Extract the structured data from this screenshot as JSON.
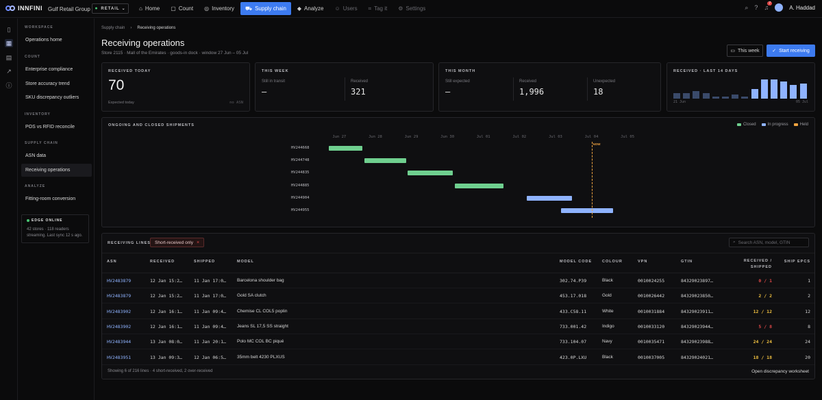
{
  "brand": {
    "name": "INNFINI",
    "org": "Gulf Retail Group",
    "mode": "RETAIL"
  },
  "nav": [
    {
      "label": "Home",
      "icon": "home-icon",
      "state": "normal"
    },
    {
      "label": "Count",
      "icon": "count-icon",
      "state": "normal"
    },
    {
      "label": "Inventory",
      "icon": "inventory-icon",
      "state": "normal"
    },
    {
      "label": "Supply chain",
      "icon": "supply-chain-icon",
      "state": "active"
    },
    {
      "label": "Analyze",
      "icon": "analyze-icon",
      "state": "normal"
    },
    {
      "label": "Users",
      "icon": "users-icon",
      "state": "disabled"
    },
    {
      "label": "Tag it",
      "icon": "tag-icon",
      "state": "disabled"
    },
    {
      "label": "Settings",
      "icon": "settings-icon",
      "state": "disabled"
    }
  ],
  "topright": {
    "notifications": "7",
    "user": "A. Haddad"
  },
  "sidebar": {
    "sections": [
      {
        "title": "WORKSPACE",
        "items": [
          "Operations home"
        ]
      },
      {
        "title": "COUNT",
        "items": [
          "Enterprise compliance",
          "Store accuracy trend",
          "SKU discrepancy outliers"
        ]
      },
      {
        "title": "INVENTORY",
        "items": [
          "POS vs RFID reconcile"
        ]
      },
      {
        "title": "SUPPLY CHAIN",
        "items": [
          "ASN data",
          "Receiving operations"
        ]
      },
      {
        "title": "ANALYZE",
        "items": [
          "Fitting-room conversion"
        ]
      }
    ],
    "edge": {
      "title": "EDGE ONLINE",
      "line1": "42 stores · 118 readers",
      "line2": "streaming. Last sync 12 s ago."
    }
  },
  "breadcrumb": {
    "parent": "Supply chain",
    "current": "Receiving operations"
  },
  "page": {
    "title": "Receiving operations",
    "subtitle": "Store 2115 · Mall of the Emirates · goods-in dock · window 27 Jun – 05 Jul"
  },
  "actions": {
    "period": "This week",
    "primary": "Start receiving"
  },
  "cards": {
    "today": {
      "title": "RECEIVED TODAY",
      "value": "70",
      "foot": "Expected today",
      "foot_right": "no ASN"
    },
    "week": {
      "title": "THIS WEEK",
      "transit_label": "Still in transit",
      "transit_value": "—",
      "received_label": "Received",
      "received_value": "321"
    },
    "month": {
      "title": "THIS MONTH",
      "expected_label": "Still expected",
      "expected_value": "—",
      "received_label": "Received",
      "received_value": "1,996",
      "unexpected_label": "Unexpected",
      "unexpected_value": "18"
    },
    "spark": {
      "title": "RECEIVED · LAST 14 DAYS",
      "start": "21 Jun",
      "end": "05 Jul",
      "values": [
        6,
        6,
        8,
        6,
        2,
        2,
        4,
        2,
        10,
        20,
        20,
        18,
        14,
        16
      ]
    }
  },
  "gantt": {
    "title": "ONGOING AND CLOSED SHIPMENTS",
    "legend": [
      {
        "label": "Closed",
        "color": "#6fcf8f"
      },
      {
        "label": "In progress",
        "color": "#8fb3ff"
      },
      {
        "label": "Held",
        "color": "#f0a340"
      }
    ],
    "ticks": [
      "Jun 27",
      "Jun 28",
      "Jun 29",
      "Jun 30",
      "Jul 01",
      "Jul 02",
      "Jul 03",
      "Jul 04",
      "Jul 05"
    ],
    "now_label": "NOW",
    "now_day": 7.5,
    "rows": [
      {
        "asn": "HV244668",
        "start": 0.2,
        "end": 1.15,
        "status": "closed"
      },
      {
        "asn": "HV244748",
        "start": 1.2,
        "end": 2.35,
        "status": "closed"
      },
      {
        "asn": "HV244835",
        "start": 2.4,
        "end": 3.65,
        "status": "closed"
      },
      {
        "asn": "HV244885",
        "start": 3.7,
        "end": 5.05,
        "status": "closed"
      },
      {
        "asn": "HV244904",
        "start": 5.7,
        "end": 6.95,
        "status": "in-progress"
      },
      {
        "asn": "HV244955",
        "start": 6.65,
        "end": 8.1,
        "status": "in-progress"
      }
    ]
  },
  "lines": {
    "title": "RECEIVING LINES",
    "filter_chip": "Short-received only",
    "search_placeholder": "Search ASN, model, GTIN",
    "columns": [
      "ASN",
      "RECEIVED",
      "SHIPPED",
      "MODEL",
      "MODEL CODE",
      "COLOUR",
      "VPN",
      "GTIN",
      "RECEIVED / SHIPPED",
      "SHIP EPCS"
    ],
    "rows": [
      {
        "asn": "HV2483879",
        "received": "12 Jan 15:2…",
        "shipped": "11 Jan 17:0…",
        "model": "Barcelona shoulder bag",
        "code": "302.74.P39",
        "colour": "Black",
        "vpn": "0010024255",
        "gtin": "84329023897…",
        "ratio": "0 / 1",
        "epcs": "1",
        "state": "bad"
      },
      {
        "asn": "HV2483879",
        "received": "12 Jan 15:2…",
        "shipped": "11 Jan 17:0…",
        "model": "Gold SA clutch",
        "code": "453.17.018",
        "colour": "Gold",
        "vpn": "0010026442",
        "gtin": "84329023850…",
        "ratio": "2 / 2",
        "epcs": "2",
        "state": "ok"
      },
      {
        "asn": "HV2483902",
        "received": "12 Jan 16:1…",
        "shipped": "11 Jan 09:4…",
        "model": "Chemise CL COL5 poplin",
        "code": "433.C58.11",
        "colour": "White",
        "vpn": "0010031884",
        "gtin": "84329023911…",
        "ratio": "12 / 12",
        "epcs": "12",
        "state": "ok"
      },
      {
        "asn": "HV2483902",
        "received": "12 Jan 16:1…",
        "shipped": "11 Jan 09:4…",
        "model": "Jeans SL 17,5 SS straight",
        "code": "733.001.42",
        "colour": "Indigo",
        "vpn": "0010033120",
        "gtin": "84329023944…",
        "ratio": "5 / 8",
        "epcs": "8",
        "state": "bad"
      },
      {
        "asn": "HV2483944",
        "received": "13 Jan 08:0…",
        "shipped": "11 Jan 20:1…",
        "model": "Polo MC COL BC piqué",
        "code": "733.104.07",
        "colour": "Navy",
        "vpn": "0010035471",
        "gtin": "84329023988…",
        "ratio": "24 / 24",
        "epcs": "24",
        "state": "ok"
      },
      {
        "asn": "HV2483951",
        "received": "13 Jan 09:3…",
        "shipped": "12 Jan 06:5…",
        "model": "35mm belt 4230 PLXUS",
        "code": "423.0P.LXU",
        "colour": "Black",
        "vpn": "0010037005",
        "gtin": "84329024021…",
        "ratio": "18 / 18",
        "epcs": "20",
        "state": "ok"
      }
    ],
    "footer": "Showing 6 of 216 lines · 4 short-received, 2 over-received",
    "footer_link": "Open discrepancy worksheet"
  },
  "colors": {
    "accent": "#3d7bf0",
    "closed": "#6fcf8f",
    "in_progress": "#8fb3ff",
    "held": "#f0a340",
    "short": "#e04848"
  }
}
